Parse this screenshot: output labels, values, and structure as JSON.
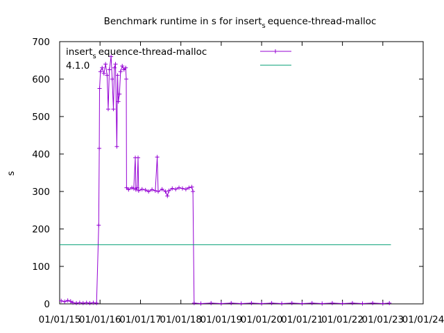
{
  "chart_data": {
    "type": "line",
    "title_parts": [
      "Benchmark runtime in s for insert",
      "s",
      "equence-thread-malloc"
    ],
    "xlabel": "",
    "ylabel": "s",
    "xlim": [
      "2015-01-01",
      "2024-01-01"
    ],
    "ylim": [
      0,
      700
    ],
    "y_ticks": [
      0,
      100,
      200,
      300,
      400,
      500,
      600,
      700
    ],
    "x_ticks": [
      "01/01/15",
      "01/01/16",
      "01/01/17",
      "01/01/18",
      "01/01/19",
      "01/01/20",
      "01/01/21",
      "01/01/22",
      "01/01/23",
      "01/01/24"
    ],
    "grid": false,
    "legend_placement": "top",
    "series": [
      {
        "name_parts": [
          "insert",
          "s",
          "equence-thread-malloc"
        ],
        "color": "#9400d3",
        "marker": "plus",
        "points": [
          [
            "2015-01-15",
            8
          ],
          [
            "2015-02-15",
            6
          ],
          [
            "2015-03-15",
            9
          ],
          [
            "2015-04-10",
            7
          ],
          [
            "2015-05-01",
            3
          ],
          [
            "2015-06-01",
            2
          ],
          [
            "2015-07-01",
            3
          ],
          [
            "2015-08-01",
            2
          ],
          [
            "2015-09-01",
            3
          ],
          [
            "2015-10-01",
            2
          ],
          [
            "2015-11-01",
            3
          ],
          [
            "2015-12-01",
            2
          ],
          [
            "2015-12-20",
            210
          ],
          [
            "2015-12-25",
            415
          ],
          [
            "2015-12-28",
            575
          ],
          [
            "2016-01-05",
            620
          ],
          [
            "2016-01-20",
            630
          ],
          [
            "2016-02-05",
            615
          ],
          [
            "2016-02-20",
            640
          ],
          [
            "2016-03-05",
            610
          ],
          [
            "2016-03-15",
            520
          ],
          [
            "2016-03-25",
            625
          ],
          [
            "2016-04-10",
            660
          ],
          [
            "2016-04-20",
            600
          ],
          [
            "2016-05-01",
            520
          ],
          [
            "2016-05-10",
            630
          ],
          [
            "2016-05-20",
            640
          ],
          [
            "2016-06-01",
            420
          ],
          [
            "2016-06-08",
            610
          ],
          [
            "2016-06-15",
            540
          ],
          [
            "2016-06-25",
            560
          ],
          [
            "2016-07-05",
            620
          ],
          [
            "2016-07-20",
            635
          ],
          [
            "2016-08-05",
            625
          ],
          [
            "2016-08-20",
            630
          ],
          [
            "2016-08-25",
            600
          ],
          [
            "2016-08-28",
            310
          ],
          [
            "2016-09-15",
            305
          ],
          [
            "2016-10-15",
            310
          ],
          [
            "2016-11-01",
            308
          ],
          [
            "2016-11-15",
            390
          ],
          [
            "2016-11-20",
            305
          ],
          [
            "2016-12-01",
            310
          ],
          [
            "2016-12-10",
            390
          ],
          [
            "2016-12-15",
            302
          ],
          [
            "2017-01-15",
            306
          ],
          [
            "2017-02-15",
            304
          ],
          [
            "2017-03-15",
            300
          ],
          [
            "2017-04-15",
            305
          ],
          [
            "2017-05-15",
            302
          ],
          [
            "2017-06-01",
            392
          ],
          [
            "2017-06-10",
            300
          ],
          [
            "2017-07-15",
            306
          ],
          [
            "2017-08-15",
            300
          ],
          [
            "2017-09-01",
            288
          ],
          [
            "2017-09-15",
            302
          ],
          [
            "2017-10-15",
            308
          ],
          [
            "2017-11-15",
            306
          ],
          [
            "2017-12-15",
            310
          ],
          [
            "2018-01-15",
            308
          ],
          [
            "2018-02-15",
            306
          ],
          [
            "2018-03-15",
            310
          ],
          [
            "2018-04-10",
            312
          ],
          [
            "2018-04-20",
            300
          ],
          [
            "2018-05-01",
            2
          ],
          [
            "2018-07-01",
            1
          ],
          [
            "2018-10-01",
            2
          ],
          [
            "2019-01-01",
            1
          ],
          [
            "2019-04-01",
            2
          ],
          [
            "2019-07-01",
            1
          ],
          [
            "2019-10-01",
            2
          ],
          [
            "2020-01-01",
            1
          ],
          [
            "2020-04-01",
            2
          ],
          [
            "2020-07-01",
            1
          ],
          [
            "2020-10-01",
            2
          ],
          [
            "2021-01-01",
            1
          ],
          [
            "2021-04-01",
            2
          ],
          [
            "2021-07-01",
            1
          ],
          [
            "2021-10-01",
            2
          ],
          [
            "2022-01-01",
            1
          ],
          [
            "2022-04-01",
            2
          ],
          [
            "2022-07-01",
            1
          ],
          [
            "2022-10-01",
            2
          ],
          [
            "2023-01-01",
            1
          ],
          [
            "2023-03-01",
            2
          ]
        ]
      },
      {
        "name_parts": [
          "4.1.0"
        ],
        "color": "#009e73",
        "marker": "none",
        "points": [
          [
            "2015-01-01",
            158
          ],
          [
            "2023-03-15",
            158
          ]
        ]
      }
    ]
  }
}
